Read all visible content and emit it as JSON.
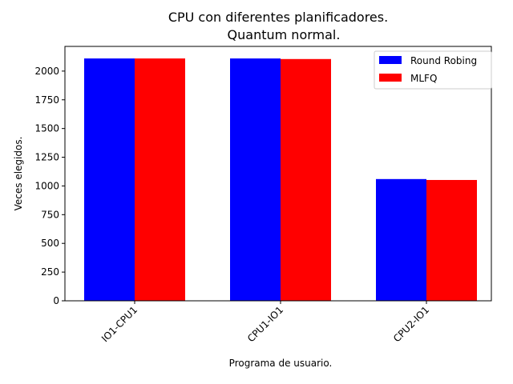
{
  "chart_data": {
    "type": "bar",
    "title": "CPU con diferentes planificadores.",
    "subtitle": "Quantum normal.",
    "xlabel": "Programa de usuario.",
    "ylabel": "Veces elegidos.",
    "categories": [
      "IO1-CPU1",
      "CPU1-IO1",
      "CPU2-IO1"
    ],
    "series": [
      {
        "name": "Round Robing",
        "color": "#0000ff",
        "values": [
          2110,
          2110,
          1060
        ]
      },
      {
        "name": "MLFQ",
        "color": "#ff0000",
        "values": [
          2110,
          2105,
          1052
        ]
      }
    ],
    "ylim": [
      0,
      2215
    ],
    "yticks": [
      0,
      250,
      500,
      750,
      1000,
      1250,
      1500,
      1750,
      2000
    ],
    "xtick_rotation": 45,
    "legend_position": "top-right",
    "grid": false
  }
}
